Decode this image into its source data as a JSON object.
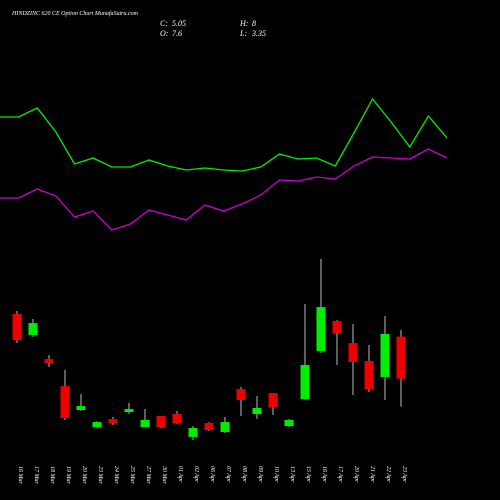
{
  "chart_data": {
    "type": "candlestick",
    "title": "HINDZINC 620 CE Option Chart MunafaSutra.com",
    "header_labels": [
      "C:",
      "O:",
      "H:",
      "L:"
    ],
    "categories": [
      "16 Mar",
      "17 Mar",
      "18 Mar",
      "19 Mar",
      "20 Mar",
      "23 Mar",
      "24 Mar",
      "25 Mar",
      "27 Mar",
      "30 Mar",
      "01 Apr",
      "02 Apr",
      "06 Apr",
      "07 Apr",
      "08 Apr",
      "09 Apr",
      "10 Apr",
      "13 Apr",
      "15 Apr",
      "16 Apr",
      "17 Apr",
      "20 Apr",
      "21 Apr",
      "22 Apr",
      "23 Apr"
    ],
    "open": [
      8.97,
      7.7,
      6.24,
      4.6,
      3.15,
      2.12,
      2.6,
      3.03,
      2.12,
      2.79,
      2.91,
      1.52,
      2.36,
      1.82,
      4.42,
      2.91,
      4.18,
      2.18,
      3.82,
      6.73,
      8.55,
      7.21,
      6.12,
      5.15,
      7.6
    ],
    "high": [
      9.15,
      8.67,
      6.48,
      5.58,
      4.12,
      2.48,
      2.73,
      3.58,
      3.21,
      2.79,
      3.09,
      2.18,
      2.42,
      2.73,
      4.55,
      4.0,
      4.18,
      2.6,
      9.58,
      12.3,
      8.61,
      8.36,
      7.09,
      8.85,
      8.0
    ],
    "low": [
      7.21,
      7.58,
      5.76,
      2.55,
      3.09,
      2.06,
      2.24,
      2.91,
      2.12,
      2.06,
      2.3,
      1.33,
      1.88,
      1.76,
      2.79,
      2.61,
      2.85,
      2.12,
      3.76,
      6.61,
      5.88,
      4.06,
      4.24,
      3.76,
      3.35
    ],
    "close": [
      7.39,
      8.42,
      6.0,
      2.67,
      3.39,
      2.42,
      2.36,
      3.21,
      2.55,
      2.12,
      2.36,
      2.06,
      1.94,
      2.42,
      3.76,
      3.27,
      3.33,
      2.55,
      5.88,
      9.39,
      7.82,
      6.06,
      4.42,
      7.76,
      5.05
    ],
    "ylim": [
      0,
      14
    ],
    "up_color": "#00ee00",
    "down_color": "#ee0000",
    "line_ylim": [
      0,
      160
    ],
    "series": [
      {
        "color": "#00ee00",
        "values": [
          133,
          133,
          142,
          118,
          86,
          92,
          83,
          83,
          90,
          84,
          80,
          82,
          80,
          79,
          83,
          96,
          91,
          92,
          84,
          117,
          151,
          128,
          103,
          134,
          112
        ]
      },
      {
        "color": "#cc00cc",
        "values": [
          52,
          52,
          61,
          54,
          33,
          39,
          20,
          26,
          40,
          35,
          30,
          45,
          39,
          46,
          55,
          70,
          69,
          73,
          71,
          84,
          93,
          92,
          91,
          101,
          92
        ]
      }
    ]
  }
}
